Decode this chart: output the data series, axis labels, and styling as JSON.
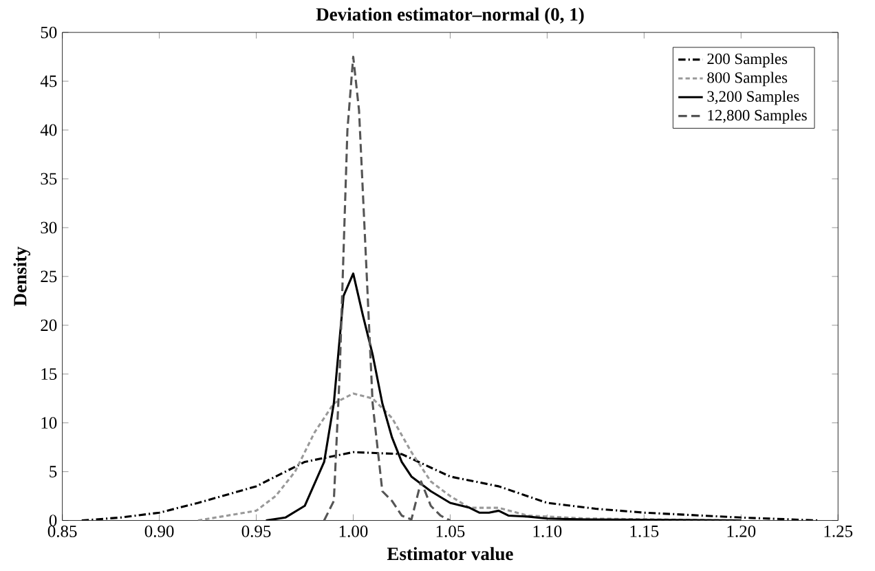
{
  "chart_data": {
    "type": "line",
    "title": "Deviation estimator–normal (0, 1)",
    "xlabel": "Estimator value",
    "ylabel": "Density",
    "xlim": [
      0.85,
      1.25
    ],
    "xticks": [
      {
        "value": 0.85,
        "label": "0.85"
      },
      {
        "value": 0.9,
        "label": "0.90"
      },
      {
        "value": 0.95,
        "label": "0.95"
      },
      {
        "value": 1.0,
        "label": "1.00"
      },
      {
        "value": 1.05,
        "label": "1.05"
      },
      {
        "value": 1.1,
        "label": "1.10"
      },
      {
        "value": 1.15,
        "label": "1.15"
      },
      {
        "value": 1.2,
        "label": "1.20"
      },
      {
        "value": 1.25,
        "label": "1.25"
      }
    ],
    "ylim": [
      0,
      50
    ],
    "yticks": [
      0,
      5,
      10,
      15,
      20,
      25,
      30,
      35,
      40,
      45,
      50
    ],
    "grid": false,
    "legend": "top right",
    "series": [
      {
        "name": "200 Samples",
        "color": "#000000",
        "line_style": "dashdot",
        "x": [
          0.86,
          0.88,
          0.9,
          0.92,
          0.95,
          0.975,
          1.0,
          1.025,
          1.05,
          1.075,
          1.1,
          1.125,
          1.15,
          1.2,
          1.24
        ],
        "values": [
          0,
          0.3,
          0.8,
          1.8,
          3.5,
          6,
          7,
          6.8,
          4.5,
          3.5,
          1.8,
          1.2,
          0.8,
          0.3,
          0
        ]
      },
      {
        "name": "800 Samples",
        "color": "#999999",
        "line_style": "dotted",
        "x": [
          0.92,
          0.95,
          0.96,
          0.97,
          0.98,
          0.99,
          1.0,
          1.01,
          1.02,
          1.03,
          1.04,
          1.05,
          1.06,
          1.075,
          1.09,
          1.12,
          1.2
        ],
        "values": [
          0,
          1,
          2.5,
          5,
          9,
          12,
          13,
          12.5,
          10.5,
          7,
          4,
          2.5,
          1.3,
          1.3,
          0.5,
          0.2,
          0
        ]
      },
      {
        "name": "3,200 Samples",
        "color": "#000000",
        "line_style": "solid",
        "x": [
          0.955,
          0.965,
          0.975,
          0.985,
          0.99,
          0.995,
          1.0,
          1.005,
          1.01,
          1.015,
          1.02,
          1.025,
          1.03,
          1.04,
          1.05,
          1.06,
          1.065,
          1.07,
          1.075,
          1.08,
          1.09,
          1.1,
          1.12,
          1.2
        ],
        "values": [
          0,
          0.3,
          1.5,
          6,
          12,
          23,
          25.3,
          21,
          17,
          12,
          8.5,
          6,
          4.5,
          3,
          1.8,
          1.3,
          0.8,
          0.8,
          1.0,
          0.5,
          0.4,
          0.2,
          0.1,
          0
        ]
      },
      {
        "name": "12,800 Samples",
        "color": "#555555",
        "line_style": "dashed",
        "x": [
          0.985,
          0.99,
          0.993,
          0.997,
          1.0,
          1.003,
          1.007,
          1.01,
          1.015,
          1.02,
          1.025,
          1.03,
          1.035,
          1.04,
          1.045,
          1.05
        ],
        "values": [
          0,
          2,
          15,
          40,
          47.5,
          42,
          25,
          12,
          3,
          2,
          0.5,
          0.1,
          4,
          1.5,
          0.5,
          0
        ]
      }
    ]
  }
}
